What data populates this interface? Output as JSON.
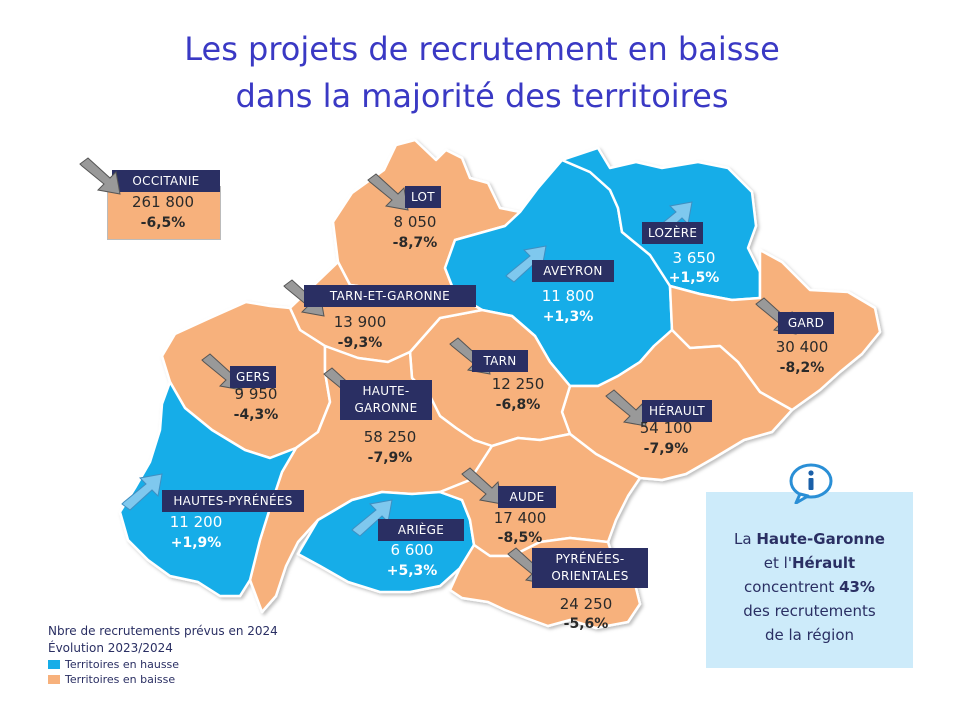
{
  "title": {
    "line1": "Les projets de recrutement en baisse",
    "line2": "dans la majorité des territoires"
  },
  "colors": {
    "hausse": "#16ade8",
    "baisse": "#f7b17c",
    "label_bg": "#2a2f63",
    "title": "#3a39c4",
    "info_bg": "#cdebfa"
  },
  "occitanie": {
    "name": "OCCITANIE",
    "value": "261 800",
    "change": "-6,5%",
    "trend": "down"
  },
  "departments": {
    "lot": {
      "name": "LOT",
      "value": "8 050",
      "change": "-8,7%",
      "trend": "down"
    },
    "lozere": {
      "name": "LOZÈRE",
      "value": "3 650",
      "change": "+1,5%",
      "trend": "up"
    },
    "aveyron": {
      "name": "AVEYRON",
      "value": "11 800",
      "change": "+1,3%",
      "trend": "up"
    },
    "tarn_et_garonne": {
      "name": "TARN-ET-GARONNE",
      "value": "13 900",
      "change": "-9,3%",
      "trend": "down"
    },
    "gard": {
      "name": "GARD",
      "value": "30 400",
      "change": "-8,2%",
      "trend": "down"
    },
    "gers": {
      "name": "GERS",
      "value": "9 950",
      "change": "-4,3%",
      "trend": "down"
    },
    "tarn": {
      "name": "TARN",
      "value": "12 250",
      "change": "-6,8%",
      "trend": "down"
    },
    "haute_garonne": {
      "name1": "HAUTE-",
      "name2": "GARONNE",
      "value": "58 250",
      "change": "-7,9%",
      "trend": "down"
    },
    "herault": {
      "name": "HÉRAULT",
      "value": "54 100",
      "change": "-7,9%",
      "trend": "down"
    },
    "hautes_pyrenees": {
      "name": "HAUTES-PYRÉNÉES",
      "value": "11 200",
      "change": "+1,9%",
      "trend": "up"
    },
    "aude": {
      "name": "AUDE",
      "value": "17 400",
      "change": "-8,5%",
      "trend": "down"
    },
    "ariege": {
      "name": "ARIÈGE",
      "value": "6 600",
      "change": "+5,3%",
      "trend": "up"
    },
    "pyrenees_orientales": {
      "name1": "PYRÉNÉES-",
      "name2": "ORIENTALES",
      "value": "24 250",
      "change": "-5,6%",
      "trend": "down"
    }
  },
  "info": {
    "line1_pre": "La ",
    "line1_bold": "Haute-Garonne",
    "line2_pre": "et l'",
    "line2_bold": "Hérault",
    "line3_pre": "concentrent ",
    "line3_bold": "43%",
    "line4": "des recrutements",
    "line5": "de la région"
  },
  "legend": {
    "line1": "Nbre de recrutements prévus en 2024",
    "line2": "Évolution 2023/2024",
    "hausse": "Territoires en hausse",
    "baisse": "Territoires en baisse"
  }
}
